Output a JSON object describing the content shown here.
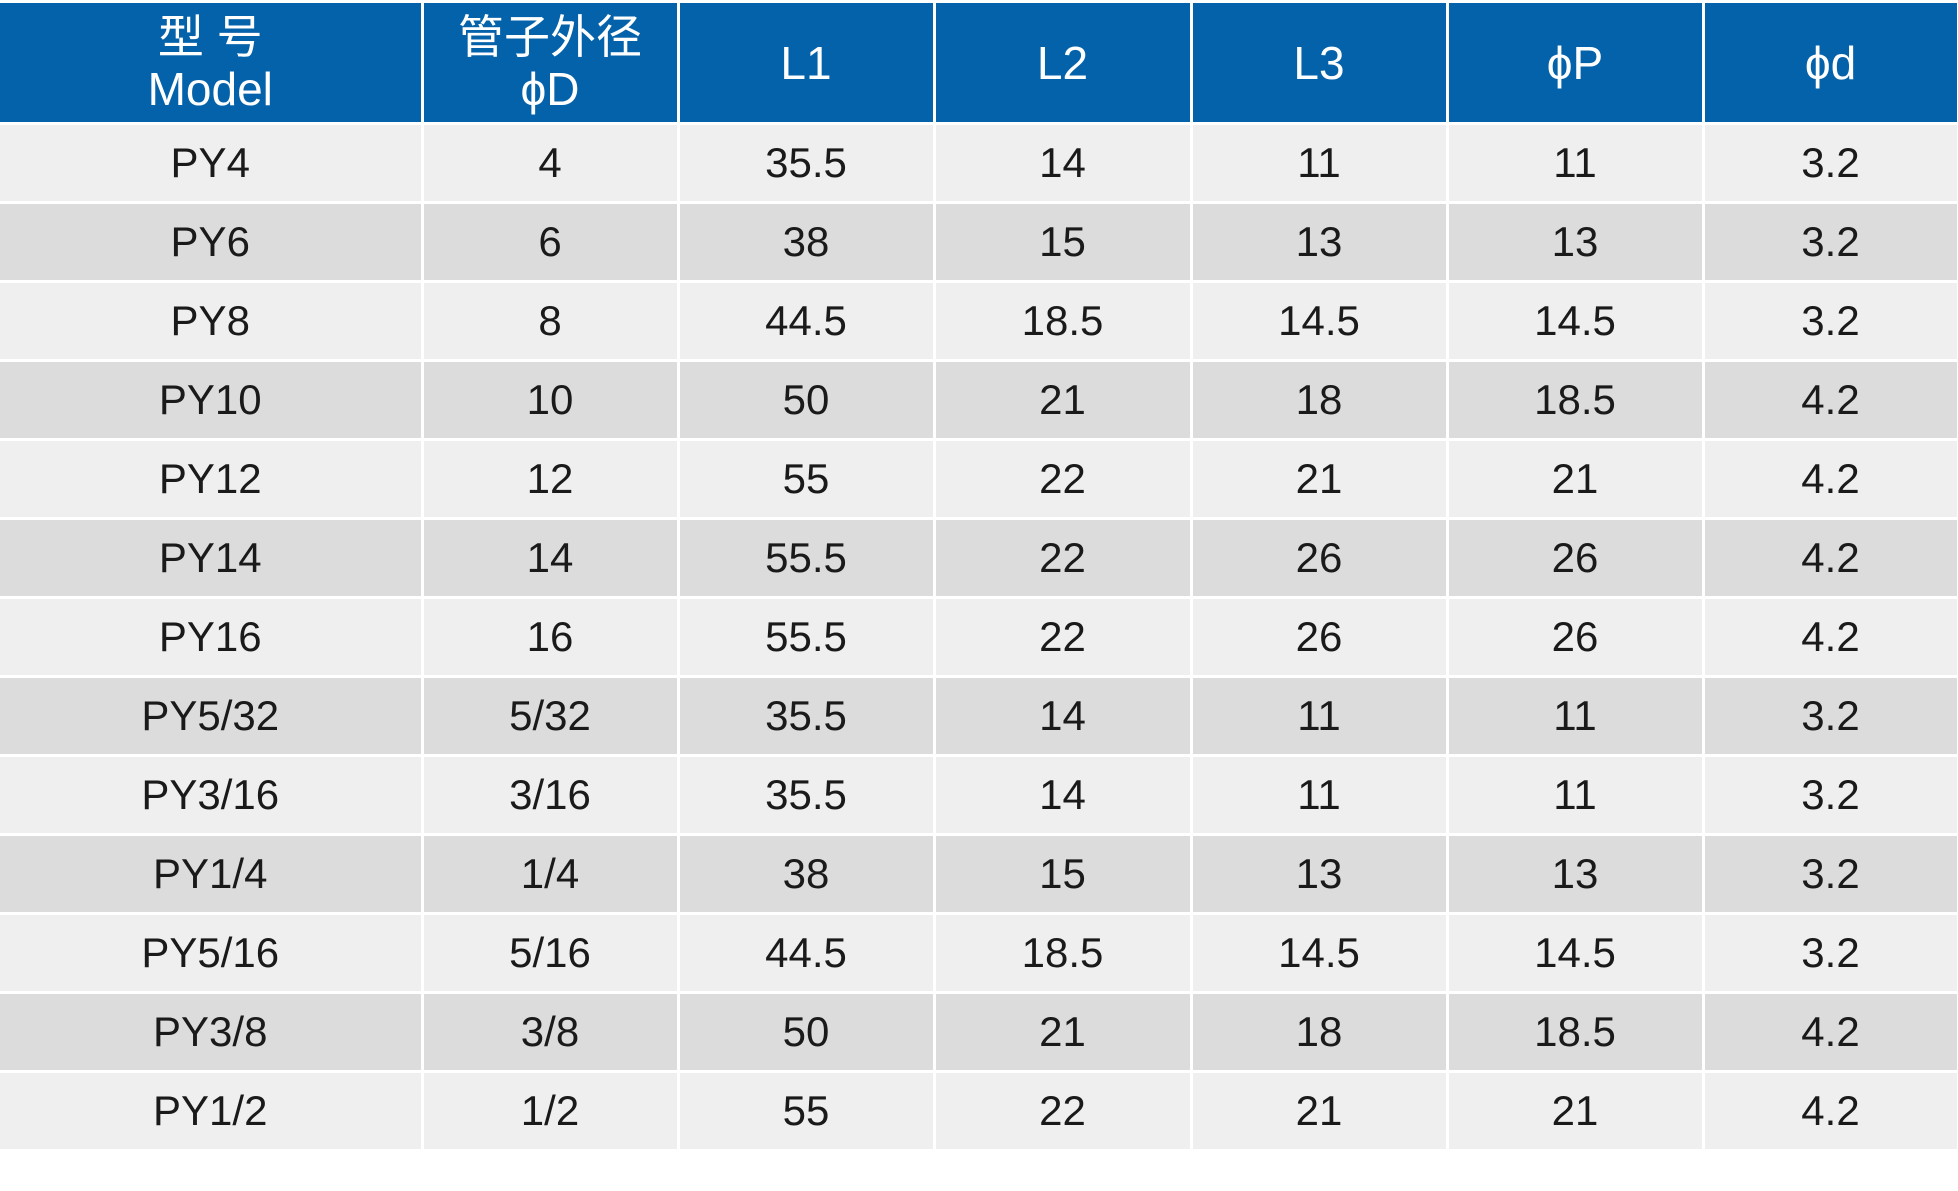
{
  "table": {
    "header": [
      [
        "型 号",
        "Model"
      ],
      [
        "管子外径",
        "ϕD"
      ],
      [
        "L1"
      ],
      [
        "L2"
      ],
      [
        "L3"
      ],
      [
        "ϕP"
      ],
      [
        "ϕd"
      ]
    ],
    "rows": [
      [
        "PY4",
        "4",
        "35.5",
        "14",
        "11",
        "11",
        "3.2"
      ],
      [
        "PY6",
        "6",
        "38",
        "15",
        "13",
        "13",
        "3.2"
      ],
      [
        "PY8",
        "8",
        "44.5",
        "18.5",
        "14.5",
        "14.5",
        "3.2"
      ],
      [
        "PY10",
        "10",
        "50",
        "21",
        "18",
        "18.5",
        "4.2"
      ],
      [
        "PY12",
        "12",
        "55",
        "22",
        "21",
        "21",
        "4.2"
      ],
      [
        "PY14",
        "14",
        "55.5",
        "22",
        "26",
        "26",
        "4.2"
      ],
      [
        "PY16",
        "16",
        "55.5",
        "22",
        "26",
        "26",
        "4.2"
      ],
      [
        "PY5/32",
        "5/32",
        "35.5",
        "14",
        "11",
        "11",
        "3.2"
      ],
      [
        "PY3/16",
        "3/16",
        "35.5",
        "14",
        "11",
        "11",
        "3.2"
      ],
      [
        "PY1/4",
        "1/4",
        "38",
        "15",
        "13",
        "13",
        "3.2"
      ],
      [
        "PY5/16",
        "5/16",
        "44.5",
        "18.5",
        "14.5",
        "14.5",
        "3.2"
      ],
      [
        "PY3/8",
        "3/8",
        "50",
        "21",
        "18",
        "18.5",
        "4.2"
      ],
      [
        "PY1/2",
        "1/2",
        "55",
        "22",
        "21",
        "21",
        "4.2"
      ]
    ]
  }
}
